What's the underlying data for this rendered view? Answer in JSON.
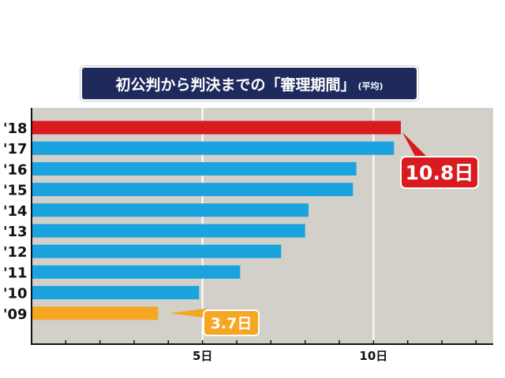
{
  "title": {
    "main": "初公判から判決までの「審理期間」",
    "sub": "(平均)"
  },
  "colors": {
    "plot_background": "#d3d0c9",
    "gridline": "#ffffff",
    "bar_default": "#1aa3df",
    "bar_2018": "#d91a1e",
    "bar_2009": "#f5a623",
    "title_background": "#1f2a5c"
  },
  "chart_data": {
    "type": "bar",
    "orientation": "horizontal",
    "categories": [
      "'18",
      "'17",
      "'16",
      "'15",
      "'14",
      "'13",
      "'12",
      "'11",
      "'10",
      "'09"
    ],
    "values": [
      10.8,
      10.6,
      9.5,
      9.4,
      8.1,
      8.0,
      7.3,
      6.1,
      4.9,
      3.7
    ],
    "xlim": [
      0,
      13.5
    ],
    "xticks": [
      {
        "value": 5,
        "label": "5日"
      },
      {
        "value": 10,
        "label": "10日"
      }
    ],
    "grid": true,
    "annotations": [
      {
        "category": "'18",
        "value": 10.8,
        "label": "10.8日"
      },
      {
        "category": "'09",
        "value": 3.7,
        "label": "3.7日"
      }
    ]
  }
}
